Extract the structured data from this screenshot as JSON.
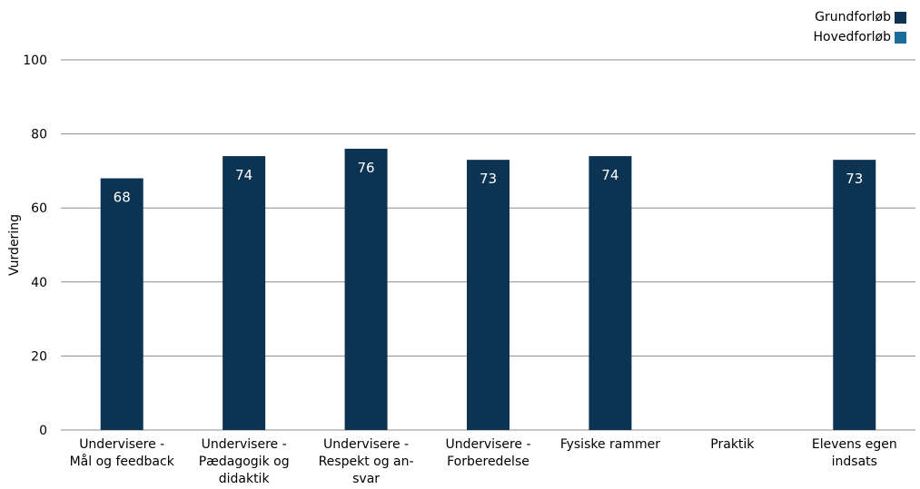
{
  "chart_data": {
    "type": "bar",
    "ylabel": "Vurdering",
    "ylim": [
      0,
      100
    ],
    "yticks": [
      0,
      20,
      40,
      60,
      80,
      100
    ],
    "grid": true,
    "legend_position": "top-right",
    "categories": [
      [
        "Undervisere -",
        "Mål og feedback"
      ],
      [
        "Undervisere -",
        "Pædagogik og",
        "didaktik"
      ],
      [
        "Undervisere -",
        "Respekt og an-",
        "svar"
      ],
      [
        "Undervisere -",
        "Forberedelse"
      ],
      [
        "Fysiske rammer"
      ],
      [
        "Praktik"
      ],
      [
        "Elevens egen",
        "indsats"
      ]
    ],
    "series": [
      {
        "name": "Grundforløb",
        "color": "#0d3352",
        "values": [
          68,
          74,
          76,
          73,
          74,
          null,
          73
        ],
        "labels": [
          "68",
          "74",
          "76",
          "73",
          "74",
          "",
          "73"
        ]
      },
      {
        "name": "Hovedforløb",
        "color": "#1a6c9c",
        "values": [
          null,
          null,
          null,
          null,
          null,
          null,
          null
        ],
        "labels": [
          "",
          "",
          "",
          "",
          "",
          "",
          ""
        ]
      }
    ]
  }
}
